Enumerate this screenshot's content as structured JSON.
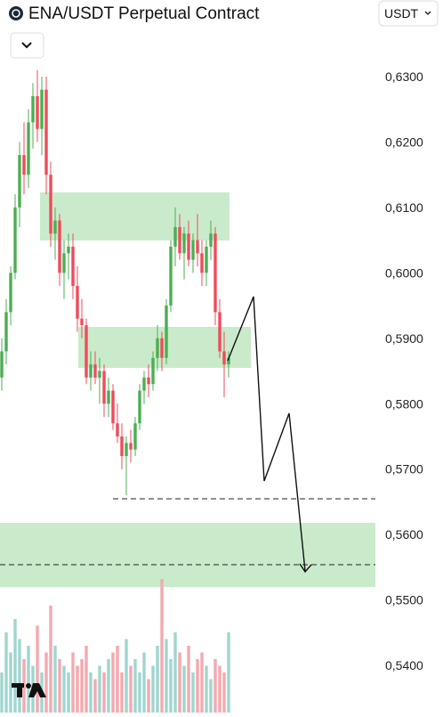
{
  "header": {
    "title": "ENA/USDT Perpetual Contract",
    "currency": "USDT"
  },
  "chart_data": {
    "type": "candlestick",
    "up_color": "#4caf50",
    "down_color": "#f04b5a",
    "up_volume_color": "#9fd6cf",
    "down_volume_color": "#f4a9ae",
    "ylim": [
      0.5328,
      0.6417
    ],
    "yticks": [
      {
        "value": 0.63,
        "label": "0,6300"
      },
      {
        "value": 0.62,
        "label": "0,6200"
      },
      {
        "value": 0.61,
        "label": "0,6100"
      },
      {
        "value": 0.6,
        "label": "0,6000"
      },
      {
        "value": 0.59,
        "label": "0,5900"
      },
      {
        "value": 0.58,
        "label": "0,5800"
      },
      {
        "value": 0.57,
        "label": "0,5700"
      },
      {
        "value": 0.56,
        "label": "0,5600"
      },
      {
        "value": 0.55,
        "label": "0,5500"
      },
      {
        "value": 0.54,
        "label": "0,5400"
      }
    ],
    "open": [
      0.584,
      0.588,
      0.594,
      0.6,
      0.61,
      0.618,
      0.615,
      0.623,
      0.627,
      0.622,
      0.628,
      0.615,
      0.606,
      0.608,
      0.6,
      0.603,
      0.604,
      0.598,
      0.593,
      0.592,
      0.584,
      0.586,
      0.584,
      0.585,
      0.58,
      0.582,
      0.577,
      0.575,
      0.572,
      0.574,
      0.573,
      0.577,
      0.582,
      0.584,
      0.583,
      0.587,
      0.59,
      0.587,
      0.595,
      0.604,
      0.607,
      0.603,
      0.606,
      0.602,
      0.605,
      0.603,
      0.6,
      0.604,
      0.606,
      0.594,
      0.588,
      0.586
    ],
    "high": [
      0.59,
      0.596,
      0.601,
      0.612,
      0.62,
      0.623,
      0.625,
      0.629,
      0.631,
      0.63,
      0.63,
      0.617,
      0.61,
      0.609,
      0.605,
      0.606,
      0.606,
      0.601,
      0.596,
      0.593,
      0.588,
      0.588,
      0.587,
      0.586,
      0.584,
      0.583,
      0.58,
      0.577,
      0.575,
      0.576,
      0.578,
      0.583,
      0.585,
      0.586,
      0.588,
      0.592,
      0.591,
      0.596,
      0.605,
      0.61,
      0.609,
      0.607,
      0.608,
      0.606,
      0.609,
      0.605,
      0.605,
      0.608,
      0.607,
      0.596,
      0.591,
      0.588
    ],
    "low": [
      0.582,
      0.586,
      0.592,
      0.599,
      0.607,
      0.612,
      0.613,
      0.619,
      0.62,
      0.618,
      0.612,
      0.604,
      0.602,
      0.598,
      0.596,
      0.599,
      0.596,
      0.591,
      0.59,
      0.583,
      0.582,
      0.583,
      0.58,
      0.578,
      0.578,
      0.576,
      0.574,
      0.57,
      0.566,
      0.571,
      0.572,
      0.576,
      0.58,
      0.581,
      0.582,
      0.585,
      0.585,
      0.586,
      0.594,
      0.601,
      0.602,
      0.599,
      0.601,
      0.6,
      0.601,
      0.598,
      0.598,
      0.602,
      0.592,
      0.587,
      0.581,
      0.584
    ],
    "close": [
      0.588,
      0.594,
      0.6,
      0.61,
      0.618,
      0.615,
      0.623,
      0.627,
      0.622,
      0.628,
      0.615,
      0.606,
      0.608,
      0.6,
      0.603,
      0.604,
      0.598,
      0.593,
      0.592,
      0.584,
      0.586,
      0.584,
      0.585,
      0.58,
      0.582,
      0.577,
      0.575,
      0.572,
      0.574,
      0.573,
      0.577,
      0.582,
      0.584,
      0.583,
      0.587,
      0.59,
      0.587,
      0.595,
      0.604,
      0.607,
      0.603,
      0.606,
      0.602,
      0.605,
      0.603,
      0.6,
      0.604,
      0.606,
      0.594,
      0.588,
      0.586,
      0.587
    ],
    "volume": [
      30,
      60,
      45,
      70,
      55,
      40,
      50,
      35,
      65,
      30,
      45,
      80,
      50,
      40,
      35,
      30,
      45,
      35,
      40,
      50,
      30,
      25,
      35,
      30,
      40,
      45,
      50,
      30,
      55,
      35,
      40,
      30,
      45,
      25,
      35,
      50,
      100,
      55,
      40,
      60,
      45,
      35,
      50,
      30,
      40,
      45,
      35,
      25,
      40,
      35,
      30,
      60
    ]
  }
}
